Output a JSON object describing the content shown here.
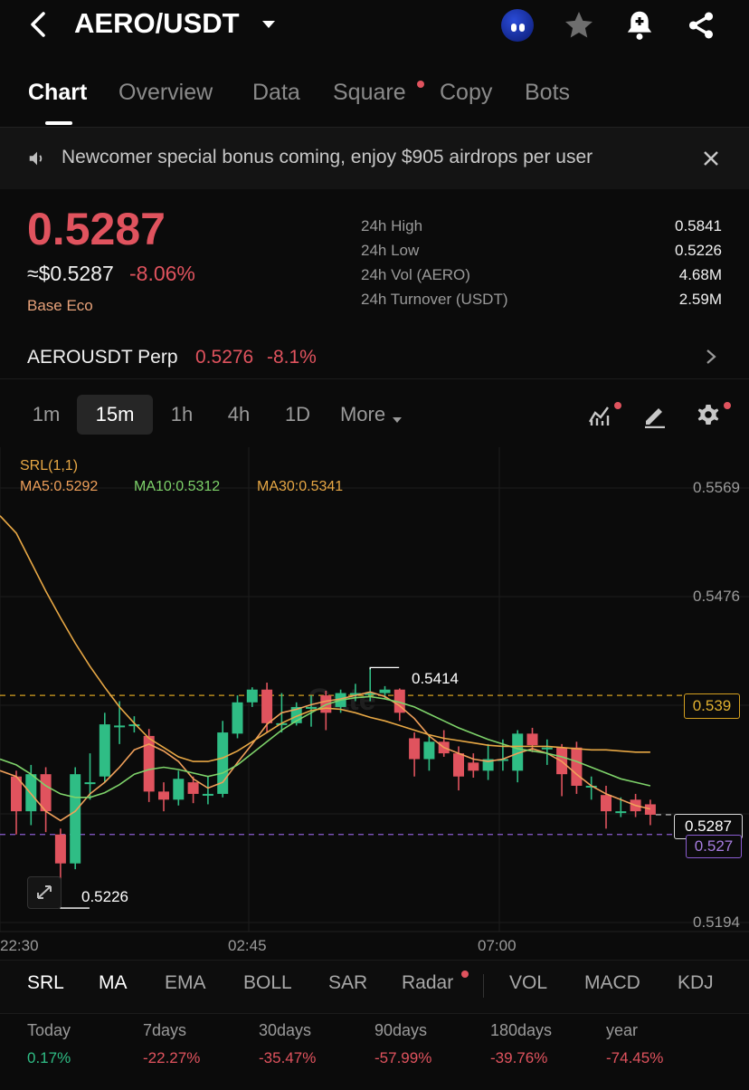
{
  "header": {
    "title": "AERO/USDT"
  },
  "tabs": [
    {
      "label": "Chart",
      "active": true
    },
    {
      "label": "Overview"
    },
    {
      "label": "Data"
    },
    {
      "label": "Square",
      "badge": true
    },
    {
      "label": "Copy"
    },
    {
      "label": "Bots"
    }
  ],
  "banner": {
    "text": "Newcomer special bonus coming, enjoy $905 airdrops per user"
  },
  "price": {
    "last": "0.5287",
    "usd": "≈$0.5287",
    "change": "-8.06%",
    "tag": "Base Eco"
  },
  "stats": [
    {
      "label": "24h High",
      "value": "0.5841"
    },
    {
      "label": "24h Low",
      "value": "0.5226"
    },
    {
      "label": "24h Vol (AERO)",
      "value": "4.68M"
    },
    {
      "label": "24h Turnover (USDT)",
      "value": "2.59M"
    }
  ],
  "perp": {
    "name": "AEROUSDT Perp",
    "price": "0.5276",
    "change": "-8.1%"
  },
  "timeframes": [
    "1m",
    "15m",
    "1h",
    "4h",
    "1D",
    "More"
  ],
  "active_timeframe": "15m",
  "chart": {
    "legend": {
      "srl": "SRL(1,1)",
      "ma5": "MA5:0.5292",
      "ma10": "MA10:0.5312",
      "ma30": "MA30:0.5341"
    },
    "yticks": [
      "0.5569",
      "0.5476",
      "0.5194"
    ],
    "xticks": [
      "22:30",
      "02:45",
      "07:00"
    ],
    "hi_label": "0.5414",
    "lo_label": "0.5226",
    "line_539": "0.539",
    "line_527": "0.527",
    "current": "0.5287",
    "watermark": "Gate",
    "colors": {
      "up": "#2fbd85",
      "down": "#e0535e",
      "ma5": "#f0a05a",
      "ma10": "#7ed36a",
      "ma30": "#e8a845",
      "line539": "#d4a020",
      "line527": "#8a5cd0"
    }
  },
  "chart_data": {
    "type": "candlestick",
    "x_labels": [
      "22:30",
      "02:45",
      "07:00"
    ],
    "ylim": [
      0.5194,
      0.5569
    ],
    "high": 0.5414,
    "low": 0.5226,
    "last": 0.5287,
    "candles": [
      {
        "o": 0.532,
        "c": 0.529,
        "h": 0.5325,
        "l": 0.527
      },
      {
        "o": 0.529,
        "c": 0.5322,
        "h": 0.533,
        "l": 0.5278
      },
      {
        "o": 0.5322,
        "c": 0.529,
        "h": 0.5328,
        "l": 0.5272
      },
      {
        "o": 0.527,
        "c": 0.5245,
        "h": 0.5275,
        "l": 0.5226
      },
      {
        "o": 0.5245,
        "c": 0.5322,
        "h": 0.5328,
        "l": 0.524
      },
      {
        "o": 0.5315,
        "c": 0.5315,
        "h": 0.534,
        "l": 0.53
      },
      {
        "o": 0.532,
        "c": 0.5365,
        "h": 0.5375,
        "l": 0.5315
      },
      {
        "o": 0.5364,
        "c": 0.5364,
        "h": 0.5385,
        "l": 0.5348
      },
      {
        "o": 0.5365,
        "c": 0.5365,
        "h": 0.5372,
        "l": 0.5358
      },
      {
        "o": 0.5355,
        "c": 0.5307,
        "h": 0.5361,
        "l": 0.5298
      },
      {
        "o": 0.5307,
        "c": 0.53,
        "h": 0.5315,
        "l": 0.529
      },
      {
        "o": 0.53,
        "c": 0.5318,
        "h": 0.5325,
        "l": 0.5295
      },
      {
        "o": 0.5315,
        "c": 0.5305,
        "h": 0.532,
        "l": 0.5297
      },
      {
        "o": 0.5305,
        "c": 0.5305,
        "h": 0.532,
        "l": 0.5296
      },
      {
        "o": 0.5305,
        "c": 0.5358,
        "h": 0.5368,
        "l": 0.5302
      },
      {
        "o": 0.5357,
        "c": 0.5384,
        "h": 0.539,
        "l": 0.5353
      },
      {
        "o": 0.5384,
        "c": 0.5395,
        "h": 0.5397,
        "l": 0.538
      },
      {
        "o": 0.5395,
        "c": 0.5366,
        "h": 0.5401,
        "l": 0.5358
      },
      {
        "o": 0.5366,
        "c": 0.5366,
        "h": 0.5392,
        "l": 0.5358
      },
      {
        "o": 0.5366,
        "c": 0.538,
        "h": 0.5384,
        "l": 0.5364
      },
      {
        "o": 0.538,
        "c": 0.538,
        "h": 0.539,
        "l": 0.5363
      },
      {
        "o": 0.539,
        "c": 0.5375,
        "h": 0.5394,
        "l": 0.536
      },
      {
        "o": 0.538,
        "c": 0.5392,
        "h": 0.5395,
        "l": 0.5375
      },
      {
        "o": 0.5392,
        "c": 0.5392,
        "h": 0.54,
        "l": 0.5385
      },
      {
        "o": 0.5392,
        "c": 0.5392,
        "h": 0.5414,
        "l": 0.5385
      },
      {
        "o": 0.5392,
        "c": 0.5395,
        "h": 0.5398,
        "l": 0.5387
      },
      {
        "o": 0.5395,
        "c": 0.5375,
        "h": 0.5396,
        "l": 0.5368
      },
      {
        "o": 0.5353,
        "c": 0.5335,
        "h": 0.5358,
        "l": 0.532
      },
      {
        "o": 0.5335,
        "c": 0.535,
        "h": 0.5355,
        "l": 0.5325
      },
      {
        "o": 0.535,
        "c": 0.534,
        "h": 0.536,
        "l": 0.5337
      },
      {
        "o": 0.534,
        "c": 0.532,
        "h": 0.5346,
        "l": 0.5308
      },
      {
        "o": 0.5332,
        "c": 0.5325,
        "h": 0.534,
        "l": 0.5319
      },
      {
        "o": 0.5325,
        "c": 0.5335,
        "h": 0.5348,
        "l": 0.5317
      },
      {
        "o": 0.5335,
        "c": 0.5335,
        "h": 0.5352,
        "l": 0.5325
      },
      {
        "o": 0.5325,
        "c": 0.5357,
        "h": 0.536,
        "l": 0.5315
      },
      {
        "o": 0.5357,
        "c": 0.5347,
        "h": 0.5362,
        "l": 0.5341
      },
      {
        "o": 0.5345,
        "c": 0.5345,
        "h": 0.5352,
        "l": 0.533
      },
      {
        "o": 0.5345,
        "c": 0.5322,
        "h": 0.5348,
        "l": 0.5303
      },
      {
        "o": 0.5345,
        "c": 0.5312,
        "h": 0.535,
        "l": 0.5305
      },
      {
        "o": 0.5312,
        "c": 0.5312,
        "h": 0.532,
        "l": 0.53
      },
      {
        "o": 0.5304,
        "c": 0.529,
        "h": 0.5312,
        "l": 0.5275
      },
      {
        "o": 0.529,
        "c": 0.529,
        "h": 0.5302,
        "l": 0.5285
      },
      {
        "o": 0.53,
        "c": 0.529,
        "h": 0.5305,
        "l": 0.5285
      },
      {
        "o": 0.5296,
        "c": 0.5287,
        "h": 0.53,
        "l": 0.5278
      }
    ],
    "ma": [
      {
        "name": "MA5",
        "values": [
          0.532,
          0.5305,
          0.529,
          0.5282,
          0.529,
          0.5305,
          0.5315,
          0.5328,
          0.5343,
          0.5348,
          0.5342,
          0.5333,
          0.5318,
          0.531,
          0.5315,
          0.5332,
          0.5348,
          0.5365,
          0.5375,
          0.5378,
          0.5382,
          0.5385,
          0.5387,
          0.539,
          0.5393,
          0.5389,
          0.5381,
          0.537,
          0.5355,
          0.5345,
          0.534,
          0.5335,
          0.5333,
          0.5335,
          0.534,
          0.5344,
          0.534,
          0.5333,
          0.5322,
          0.5312,
          0.5305,
          0.53,
          0.5295,
          0.5292
        ]
      },
      {
        "name": "MA10",
        "values": [
          0.533,
          0.5322,
          0.5312,
          0.5305,
          0.5302,
          0.5302,
          0.5306,
          0.5313,
          0.5322,
          0.5326,
          0.5328,
          0.5326,
          0.5323,
          0.532,
          0.5323,
          0.533,
          0.534,
          0.535,
          0.536,
          0.5368,
          0.5375,
          0.5382,
          0.5386,
          0.5388,
          0.5389,
          0.5387,
          0.5384,
          0.538,
          0.5374,
          0.5368,
          0.5362,
          0.5357,
          0.5352,
          0.5348,
          0.5344,
          0.5342,
          0.534,
          0.5337,
          0.5333,
          0.5328,
          0.5323,
          0.5318,
          0.5315,
          0.5312
        ]
      },
      {
        "name": "MA30",
        "values": [
          0.553,
          0.5505,
          0.548,
          0.5457,
          0.5435,
          0.5415,
          0.5397,
          0.538,
          0.5366,
          0.5353,
          0.5345,
          0.5337,
          0.5333,
          0.5333,
          0.5336,
          0.5342,
          0.535,
          0.5358,
          0.5366,
          0.5372,
          0.5377,
          0.5379,
          0.5378,
          0.5375,
          0.5371,
          0.5368,
          0.5364,
          0.536,
          0.5356,
          0.5353,
          0.5351,
          0.5349,
          0.5347,
          0.5346,
          0.5346,
          0.5346,
          0.5346,
          0.5345,
          0.5344,
          0.5343,
          0.5343,
          0.5342,
          0.5341,
          0.5341
        ]
      }
    ]
  },
  "indicators": [
    {
      "label": "SRL",
      "active": true
    },
    {
      "label": "MA",
      "active": true
    },
    {
      "label": "EMA"
    },
    {
      "label": "BOLL"
    },
    {
      "label": "SAR"
    },
    {
      "label": "Radar",
      "badge": true
    },
    {
      "label": "VOL"
    },
    {
      "label": "MACD"
    },
    {
      "label": "KDJ"
    }
  ],
  "performance": [
    {
      "label": "Today",
      "value": "0.17%",
      "dir": "up"
    },
    {
      "label": "7days",
      "value": "-22.27%",
      "dir": "down"
    },
    {
      "label": "30days",
      "value": "-35.47%",
      "dir": "down"
    },
    {
      "label": "90days",
      "value": "-57.99%",
      "dir": "down"
    },
    {
      "label": "180days",
      "value": "-39.76%",
      "dir": "down"
    },
    {
      "label": "year",
      "value": "-74.45%",
      "dir": "down"
    }
  ]
}
